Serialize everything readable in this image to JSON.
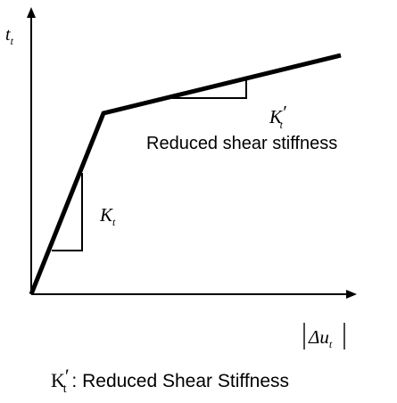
{
  "axes": {
    "y_symbol": "t",
    "y_subscript": "t",
    "x_symbol": "Δu",
    "x_subscript": "t"
  },
  "slopes": {
    "initial_symbol": "K",
    "initial_subscript": "t",
    "reduced_symbol": "K",
    "reduced_prime": "′",
    "reduced_subscript": "t",
    "reduced_description": "Reduced shear stiffness"
  },
  "caption": {
    "symbol": "K",
    "prime": "′",
    "subscript": "t",
    "text": " : Reduced Shear Stiffness"
  }
}
